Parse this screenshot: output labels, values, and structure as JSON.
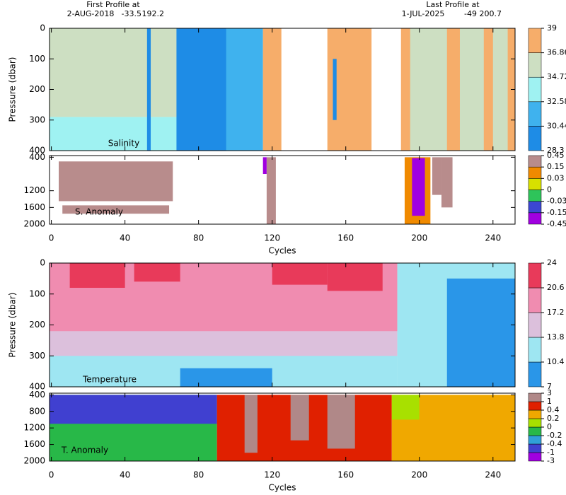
{
  "header": {
    "first_label": "First Profile at",
    "first_date": "2-AUG-2018",
    "first_lat": -33.5,
    "first_lon": 192.2,
    "last_label": "Last Profile at",
    "last_date": "1-JUL-2025",
    "last_lat": -49.0,
    "last_lon": 200.7
  },
  "chart_data": [
    {
      "type": "contour",
      "label": "Salinity",
      "ylabel": "Pressure (dbar)",
      "xlim": [
        -1,
        252
      ],
      "xticks": [
        0,
        40,
        80,
        120,
        160,
        200,
        240
      ],
      "ylim": [
        400,
        0
      ],
      "yticks": [
        0,
        100,
        200,
        300,
        400
      ],
      "colorbar": {
        "ticks": [
          28.3,
          30.44,
          32.58,
          34.72,
          36.86,
          39
        ],
        "colors": [
          "#1e8ce6",
          "#3fb2ee",
          "#9ff2f2",
          "#cddfc2",
          "#f6ad6a"
        ]
      }
    },
    {
      "type": "contour",
      "label": "S. Anomaly",
      "xlabel": "Cycles",
      "xlim": [
        -1,
        252
      ],
      "xticks": [
        0,
        40,
        80,
        120,
        160,
        200,
        240
      ],
      "ylim": [
        2000,
        360
      ],
      "yticks": [
        400,
        1200,
        1600,
        2000
      ],
      "colorbar": {
        "ticks": [
          -0.45,
          -0.15,
          -0.03,
          0,
          0.03,
          0.15,
          0.45
        ],
        "colors": [
          "#a000e0",
          "#3c46d2",
          "#2ec45a",
          "#d8e000",
          "#f08a00",
          "#b88c8c"
        ]
      }
    },
    {
      "type": "contour",
      "label": "Temperature",
      "ylabel": "Pressure (dbar)",
      "xlim": [
        -1,
        252
      ],
      "xticks": [
        0,
        40,
        80,
        120,
        160,
        200,
        240
      ],
      "ylim": [
        400,
        0
      ],
      "yticks": [
        0,
        100,
        200,
        300,
        400
      ],
      "colorbar": {
        "ticks": [
          7,
          10.4,
          13.8,
          17.2,
          20.6,
          24
        ],
        "colors": [
          "#2a96e8",
          "#9ee6f2",
          "#dcc0dc",
          "#f08cb0",
          "#e83a5a"
        ]
      }
    },
    {
      "type": "contour",
      "label": "T. Anomaly",
      "xlabel": "Cycles",
      "xlim": [
        -1,
        252
      ],
      "xticks": [
        0,
        40,
        80,
        120,
        160,
        200,
        240
      ],
      "ylim": [
        2000,
        360
      ],
      "yticks": [
        400,
        800,
        1200,
        1600,
        2000
      ],
      "colorbar": {
        "ticks": [
          -3,
          -1,
          -0.4,
          -0.2,
          0,
          0.2,
          0.4,
          1,
          3
        ],
        "colors": [
          "#a000e0",
          "#4040d0",
          "#30a0d8",
          "#28b848",
          "#a8e000",
          "#f0a800",
          "#e02000",
          "#b08888"
        ]
      }
    }
  ]
}
